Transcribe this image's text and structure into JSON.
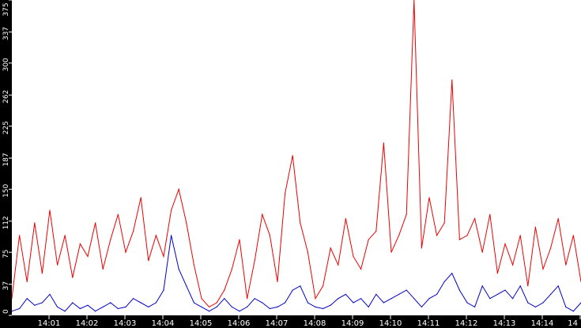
{
  "chart_data": {
    "type": "line",
    "title": "",
    "xlabel": "",
    "ylabel": "",
    "ylim": [
      0,
      375
    ],
    "y_ticks": [
      "0",
      "37",
      "75",
      "112",
      "150",
      "187",
      "225",
      "262",
      "300",
      "337",
      "375"
    ],
    "x_range": [
      "14:00",
      "14:15"
    ],
    "x_ticks": [
      "14:01",
      "14:02",
      "14:03",
      "14:04",
      "14:05",
      "14:06",
      "14:07",
      "14:08",
      "14:09",
      "14:10",
      "14:11",
      "14:12",
      "14:13",
      "14:14",
      "14"
    ],
    "grid": false,
    "legend": "none",
    "background": "#ffffff",
    "axis_color": "#000000",
    "series": [
      {
        "color": "#ee0000",
        "x": [
          "14:00:00",
          "14:00:12",
          "14:00:24",
          "14:00:36",
          "14:00:48",
          "14:01:00",
          "14:01:12",
          "14:01:24",
          "14:01:36",
          "14:01:48",
          "14:02:00",
          "14:02:12",
          "14:02:24",
          "14:02:36",
          "14:02:48",
          "14:03:00",
          "14:03:12",
          "14:03:24",
          "14:03:36",
          "14:03:48",
          "14:04:00",
          "14:04:12",
          "14:04:24",
          "14:04:36",
          "14:04:48",
          "14:05:00",
          "14:05:12",
          "14:05:24",
          "14:05:36",
          "14:05:48",
          "14:06:00",
          "14:06:12",
          "14:06:24",
          "14:06:36",
          "14:06:48",
          "14:07:00",
          "14:07:12",
          "14:07:24",
          "14:07:36",
          "14:07:48",
          "14:08:00",
          "14:08:12",
          "14:08:24",
          "14:08:36",
          "14:08:48",
          "14:09:00",
          "14:09:12",
          "14:09:24",
          "14:09:36",
          "14:09:48",
          "14:10:00",
          "14:10:12",
          "14:10:24",
          "14:10:36",
          "14:10:48",
          "14:11:00",
          "14:11:12",
          "14:11:24",
          "14:11:36",
          "14:11:48",
          "14:12:00",
          "14:12:12",
          "14:12:24",
          "14:12:36",
          "14:12:48",
          "14:13:00",
          "14:13:12",
          "14:13:24",
          "14:13:36",
          "14:13:48",
          "14:14:00",
          "14:14:12",
          "14:14:24",
          "14:14:36",
          "14:14:48",
          "14:15:00"
        ],
        "y": [
          20,
          95,
          40,
          110,
          50,
          125,
          60,
          95,
          45,
          85,
          70,
          110,
          55,
          90,
          120,
          75,
          100,
          140,
          65,
          95,
          70,
          125,
          150,
          110,
          60,
          20,
          10,
          15,
          30,
          55,
          90,
          20,
          65,
          120,
          95,
          40,
          145,
          190,
          110,
          75,
          20,
          35,
          80,
          60,
          115,
          70,
          55,
          90,
          100,
          205,
          75,
          95,
          120,
          375,
          80,
          140,
          95,
          110,
          280,
          90,
          95,
          115,
          75,
          120,
          50,
          85,
          60,
          95,
          35,
          105,
          55,
          80,
          115,
          60,
          95,
          40
        ],
        "peak": 380
      },
      {
        "color": "#0000cc",
        "x": [
          "14:00:00",
          "14:00:12",
          "14:00:24",
          "14:00:36",
          "14:00:48",
          "14:01:00",
          "14:01:12",
          "14:01:24",
          "14:01:36",
          "14:01:48",
          "14:02:00",
          "14:02:12",
          "14:02:24",
          "14:02:36",
          "14:02:48",
          "14:03:00",
          "14:03:12",
          "14:03:24",
          "14:03:36",
          "14:03:48",
          "14:04:00",
          "14:04:12",
          "14:04:24",
          "14:04:36",
          "14:04:48",
          "14:05:00",
          "14:05:12",
          "14:05:24",
          "14:05:36",
          "14:05:48",
          "14:06:00",
          "14:06:12",
          "14:06:24",
          "14:06:36",
          "14:06:48",
          "14:07:00",
          "14:07:12",
          "14:07:24",
          "14:07:36",
          "14:07:48",
          "14:08:00",
          "14:08:12",
          "14:08:24",
          "14:08:36",
          "14:08:48",
          "14:09:00",
          "14:09:12",
          "14:09:24",
          "14:09:36",
          "14:09:48",
          "14:10:00",
          "14:10:12",
          "14:10:24",
          "14:10:36",
          "14:10:48",
          "14:11:00",
          "14:11:12",
          "14:11:24",
          "14:11:36",
          "14:11:48",
          "14:12:00",
          "14:12:12",
          "14:12:24",
          "14:12:36",
          "14:12:48",
          "14:13:00",
          "14:13:12",
          "14:13:24",
          "14:13:36",
          "14:13:48",
          "14:14:00",
          "14:14:12",
          "14:14:24",
          "14:14:36",
          "14:14:48",
          "14:15:00"
        ],
        "y": [
          5,
          8,
          20,
          12,
          15,
          25,
          10,
          5,
          15,
          8,
          12,
          5,
          10,
          15,
          8,
          10,
          20,
          15,
          10,
          15,
          30,
          95,
          55,
          35,
          15,
          10,
          5,
          10,
          20,
          10,
          5,
          10,
          20,
          15,
          8,
          10,
          15,
          30,
          35,
          15,
          10,
          8,
          12,
          20,
          25,
          15,
          20,
          10,
          25,
          15,
          20,
          25,
          30,
          20,
          10,
          20,
          25,
          40,
          50,
          30,
          15,
          10,
          35,
          20,
          25,
          30,
          20,
          35,
          15,
          10,
          15,
          25,
          35,
          10,
          5,
          15
        ]
      }
    ]
  }
}
